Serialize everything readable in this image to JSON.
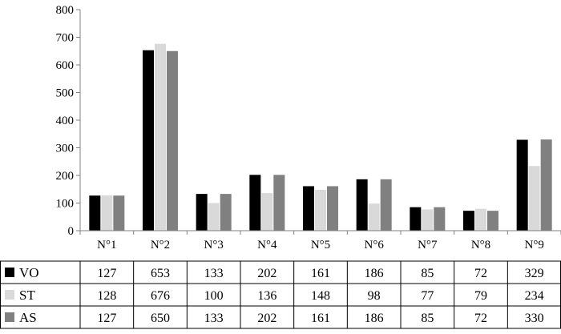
{
  "chart_data": {
    "type": "bar",
    "categories": [
      "N°1",
      "N°2",
      "N°3",
      "N°4",
      "N°5",
      "N°6",
      "N°7",
      "N°8",
      "N°9"
    ],
    "series": [
      {
        "name": "VO",
        "color": "#000000",
        "values": [
          127,
          653,
          133,
          202,
          161,
          186,
          85,
          72,
          329
        ]
      },
      {
        "name": "ST",
        "color": "#d9d9d9",
        "values": [
          128,
          676,
          100,
          136,
          148,
          98,
          77,
          79,
          234
        ]
      },
      {
        "name": "AS",
        "color": "#808080",
        "values": [
          127,
          650,
          133,
          202,
          161,
          186,
          85,
          72,
          330
        ]
      }
    ],
    "yticks": [
      "0",
      "100",
      "200",
      "300",
      "400",
      "500",
      "600",
      "700",
      "800"
    ],
    "ylim": [
      0,
      800
    ],
    "grid": false,
    "legend": "data-table-left",
    "data_table": true
  }
}
